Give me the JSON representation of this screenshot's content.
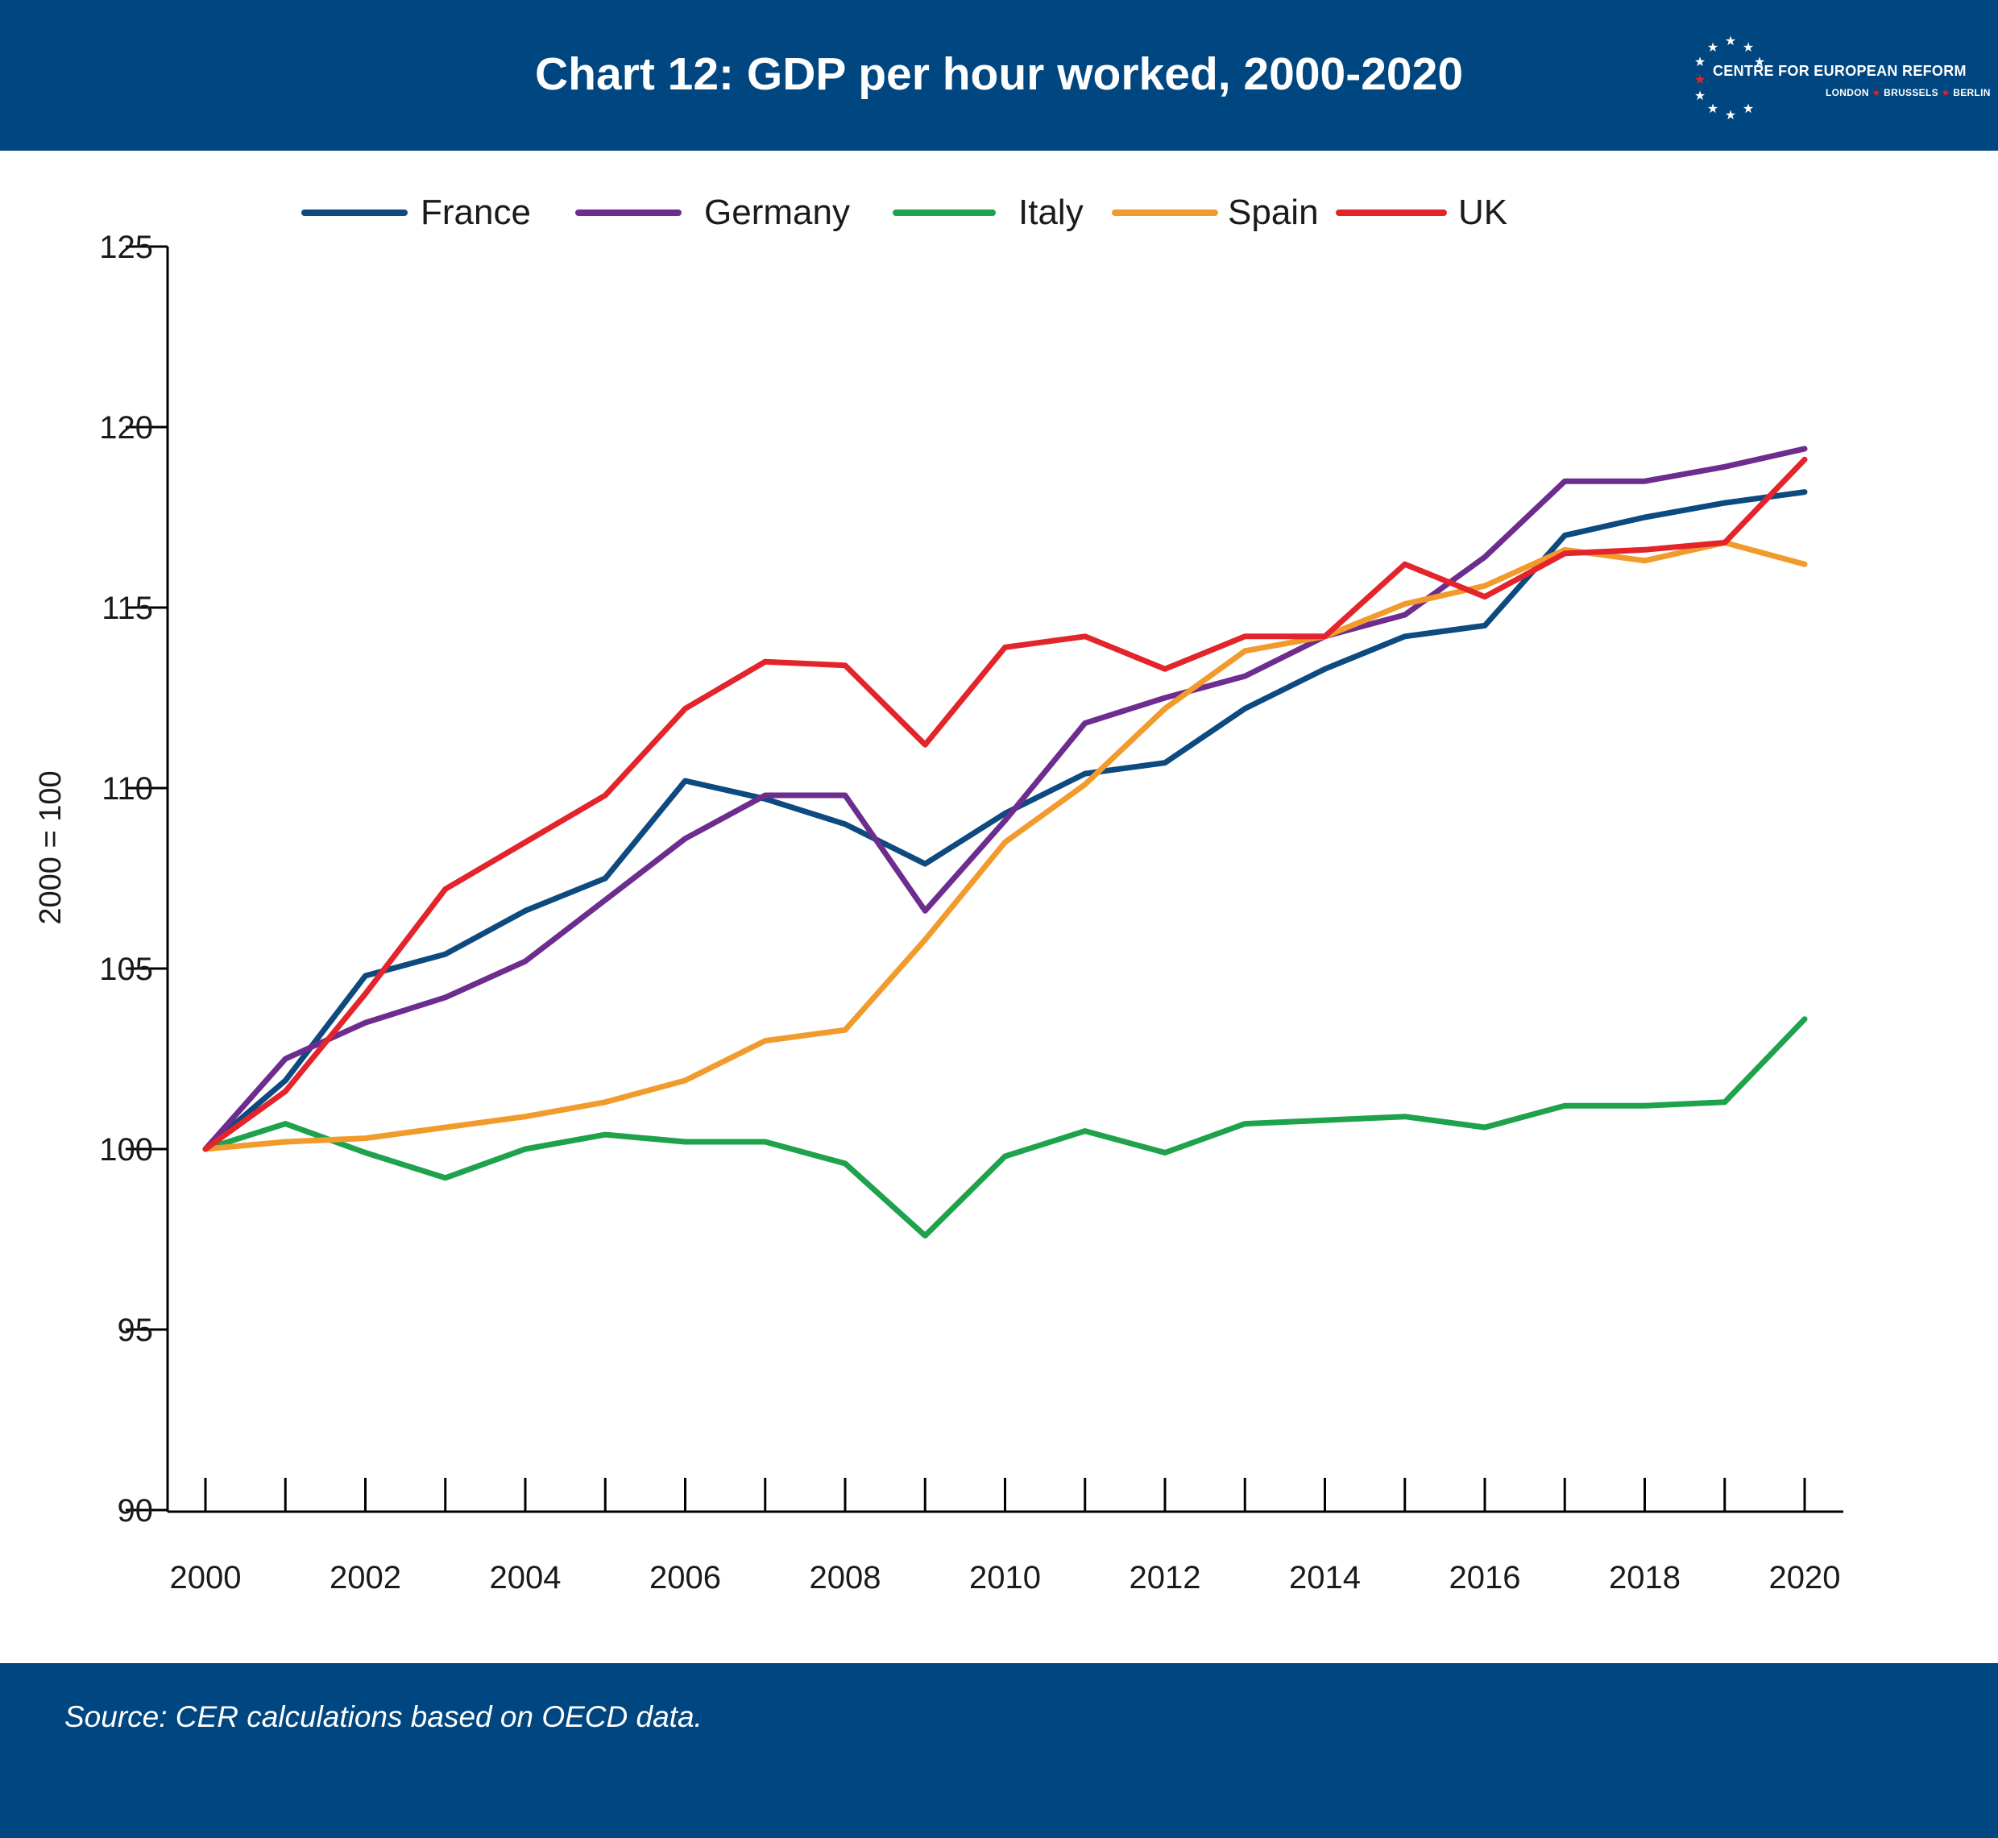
{
  "header": {
    "title": "Chart 12: GDP per hour worked, 2000-2020",
    "logo_line1": "CENTRE FOR EUROPEAN REFORM",
    "logo_line2": [
      "LONDON",
      "BRUSSELS",
      "BERLIN"
    ]
  },
  "footer": {
    "source": "Source: CER calculations based on OECD data."
  },
  "chart_data": {
    "type": "line",
    "title": "",
    "xlabel": "",
    "ylabel": "2000 = 100",
    "x": [
      2000,
      2001,
      2002,
      2003,
      2004,
      2005,
      2006,
      2007,
      2008,
      2009,
      2010,
      2011,
      2012,
      2013,
      2014,
      2015,
      2016,
      2017,
      2018,
      2019,
      2020
    ],
    "xticks": [
      2000,
      2002,
      2004,
      2006,
      2008,
      2010,
      2012,
      2014,
      2016,
      2018,
      2020
    ],
    "yticks": [
      90,
      95,
      100,
      105,
      110,
      115,
      120,
      125
    ],
    "ylim": [
      90,
      125
    ],
    "xlim": [
      2000,
      2020
    ],
    "legend": "top",
    "grid": false,
    "series": [
      {
        "name": "France",
        "color": "#0d4a80",
        "values": [
          100,
          101.9,
          104.8,
          105.4,
          106.6,
          107.5,
          110.2,
          109.7,
          109.0,
          107.9,
          109.3,
          110.4,
          110.7,
          112.2,
          113.3,
          114.2,
          114.5,
          117.0,
          117.5,
          117.9,
          118.2
        ]
      },
      {
        "name": "Germany",
        "color": "#6c2d8f",
        "values": [
          100,
          102.5,
          103.5,
          104.2,
          105.2,
          106.9,
          108.6,
          109.8,
          109.8,
          106.6,
          109.1,
          111.8,
          112.5,
          113.1,
          114.2,
          114.8,
          116.4,
          118.5,
          118.5,
          118.9,
          119.4
        ]
      },
      {
        "name": "Italy",
        "color": "#1ea24b",
        "values": [
          100,
          100.7,
          99.9,
          99.2,
          100.0,
          100.4,
          100.2,
          100.2,
          99.6,
          97.6,
          99.8,
          100.5,
          99.9,
          100.7,
          100.8,
          100.9,
          100.6,
          101.2,
          101.2,
          101.3,
          103.6
        ]
      },
      {
        "name": "Spain",
        "color": "#f19b2c",
        "values": [
          100,
          100.2,
          100.3,
          100.6,
          100.9,
          101.3,
          101.9,
          103.0,
          103.3,
          105.8,
          108.5,
          110.1,
          112.2,
          113.8,
          114.2,
          115.1,
          115.6,
          116.6,
          116.3,
          116.8,
          116.2
        ]
      },
      {
        "name": "UK",
        "color": "#e3242b",
        "values": [
          100,
          101.6,
          104.3,
          107.2,
          108.5,
          109.8,
          112.2,
          113.5,
          113.4,
          111.2,
          113.9,
          114.2,
          113.3,
          114.2,
          114.2,
          116.2,
          115.3,
          116.5,
          116.6,
          116.8,
          119.1
        ]
      }
    ]
  }
}
